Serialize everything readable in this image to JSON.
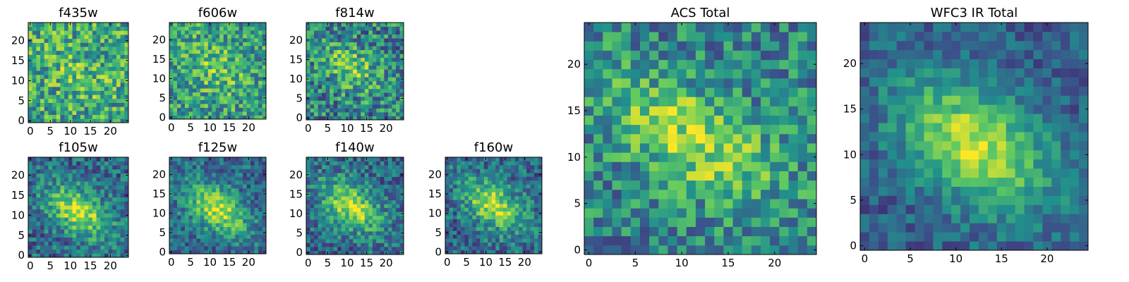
{
  "figure": {
    "colormap": "viridis",
    "colormap_stops": [
      "#440154",
      "#3b528b",
      "#21918c",
      "#5ec962",
      "#fde725"
    ],
    "axis_frame_color": "#000000"
  },
  "chart_data": [
    {
      "type": "heatmap",
      "title": "f435w",
      "grid_size": 25,
      "xlim": [
        -0.5,
        24.5
      ],
      "ylim": [
        -0.5,
        24.5
      ],
      "x_ticks": [
        0,
        5,
        10,
        15,
        20
      ],
      "y_ticks": [
        0,
        5,
        10,
        15,
        20
      ],
      "x_tick_labels": [
        "0",
        "5",
        "10",
        "15",
        "20"
      ],
      "y_tick_labels": [
        "0",
        "5",
        "10",
        "15",
        "20"
      ],
      "pattern": {
        "seed": 11,
        "blob_center": [
          12,
          12
        ],
        "blob_sigma": [
          6,
          4
        ],
        "blob_angle_deg": -35,
        "blob_amplitude": 0.1,
        "base_level": 0.6,
        "noise": 0.3
      }
    },
    {
      "type": "heatmap",
      "title": "f606w",
      "grid_size": 25,
      "xlim": [
        -0.5,
        24.5
      ],
      "ylim": [
        -0.5,
        24.5
      ],
      "x_ticks": [
        0,
        5,
        10,
        15,
        20
      ],
      "y_ticks": [
        0,
        5,
        10,
        15,
        20
      ],
      "x_tick_labels": [
        "0",
        "5",
        "10",
        "15",
        "20"
      ],
      "y_tick_labels": [
        "0",
        "5",
        "10",
        "15",
        "20"
      ],
      "pattern": {
        "seed": 23,
        "blob_center": [
          11,
          13
        ],
        "blob_sigma": [
          6,
          4
        ],
        "blob_angle_deg": -35,
        "blob_amplitude": 0.2,
        "base_level": 0.55,
        "noise": 0.28
      }
    },
    {
      "type": "heatmap",
      "title": "f814w",
      "grid_size": 25,
      "xlim": [
        -0.5,
        24.5
      ],
      "ylim": [
        -0.5,
        24.5
      ],
      "x_ticks": [
        0,
        5,
        10,
        15,
        20
      ],
      "y_ticks": [
        0,
        5,
        10,
        15,
        20
      ],
      "x_tick_labels": [
        "0",
        "5",
        "10",
        "15",
        "20"
      ],
      "y_tick_labels": [
        "0",
        "5",
        "10",
        "15",
        "20"
      ],
      "pattern": {
        "seed": 37,
        "blob_center": [
          11,
          13
        ],
        "blob_sigma": [
          6,
          3.5
        ],
        "blob_angle_deg": -35,
        "blob_amplitude": 0.3,
        "base_level": 0.45,
        "noise": 0.3
      }
    },
    {
      "type": "heatmap",
      "title": "f105w",
      "grid_size": 25,
      "xlim": [
        -0.5,
        24.5
      ],
      "ylim": [
        -0.5,
        24.5
      ],
      "x_ticks": [
        0,
        5,
        10,
        15,
        20
      ],
      "y_ticks": [
        0,
        5,
        10,
        15,
        20
      ],
      "x_tick_labels": [
        "0",
        "5",
        "10",
        "15",
        "20"
      ],
      "y_tick_labels": [
        "0",
        "5",
        "10",
        "15",
        "20"
      ],
      "pattern": {
        "seed": 41,
        "blob_center": [
          12,
          11
        ],
        "blob_sigma": [
          6,
          3.5
        ],
        "blob_angle_deg": -35,
        "blob_amplitude": 0.55,
        "base_level": 0.35,
        "noise": 0.22
      }
    },
    {
      "type": "heatmap",
      "title": "f125w",
      "grid_size": 25,
      "xlim": [
        -0.5,
        24.5
      ],
      "ylim": [
        -0.5,
        24.5
      ],
      "x_ticks": [
        0,
        5,
        10,
        15,
        20
      ],
      "y_ticks": [
        0,
        5,
        10,
        15,
        20
      ],
      "x_tick_labels": [
        "0",
        "5",
        "10",
        "15",
        "20"
      ],
      "y_tick_labels": [
        "0",
        "5",
        "10",
        "15",
        "20"
      ],
      "pattern": {
        "seed": 53,
        "blob_center": [
          12,
          11
        ],
        "blob_sigma": [
          6,
          3.5
        ],
        "blob_angle_deg": -35,
        "blob_amplitude": 0.55,
        "base_level": 0.35,
        "noise": 0.2
      }
    },
    {
      "type": "heatmap",
      "title": "f140w",
      "grid_size": 25,
      "xlim": [
        -0.5,
        24.5
      ],
      "ylim": [
        -0.5,
        24.5
      ],
      "x_ticks": [
        0,
        5,
        10,
        15,
        20
      ],
      "y_ticks": [
        0,
        5,
        10,
        15,
        20
      ],
      "x_tick_labels": [
        "0",
        "5",
        "10",
        "15",
        "20"
      ],
      "y_tick_labels": [
        "0",
        "5",
        "10",
        "15",
        "20"
      ],
      "pattern": {
        "seed": 67,
        "blob_center": [
          11,
          12
        ],
        "blob_sigma": [
          6,
          3.5
        ],
        "blob_angle_deg": -35,
        "blob_amplitude": 0.55,
        "base_level": 0.35,
        "noise": 0.22
      }
    },
    {
      "type": "heatmap",
      "title": "f160w",
      "grid_size": 25,
      "xlim": [
        -0.5,
        24.5
      ],
      "ylim": [
        -0.5,
        24.5
      ],
      "x_ticks": [
        0,
        5,
        10,
        15,
        20
      ],
      "y_ticks": [
        0,
        5,
        10,
        15,
        20
      ],
      "x_tick_labels": [
        "0",
        "5",
        "10",
        "15",
        "20"
      ],
      "y_tick_labels": [
        "0",
        "5",
        "10",
        "15",
        "20"
      ],
      "pattern": {
        "seed": 79,
        "blob_center": [
          12,
          12
        ],
        "blob_sigma": [
          6,
          3.5
        ],
        "blob_angle_deg": -35,
        "blob_amplitude": 0.55,
        "base_level": 0.35,
        "noise": 0.22
      }
    },
    {
      "type": "heatmap",
      "title": "ACS Total",
      "grid_size": 25,
      "xlim": [
        -0.5,
        24.5
      ],
      "ylim": [
        -0.5,
        24.5
      ],
      "x_ticks": [
        0,
        5,
        10,
        15,
        20
      ],
      "y_ticks": [
        0,
        5,
        10,
        15,
        20
      ],
      "x_tick_labels": [
        "0",
        "5",
        "10",
        "15",
        "20"
      ],
      "y_tick_labels": [
        "0",
        "5",
        "10",
        "15",
        "20"
      ],
      "pattern": {
        "seed": 97,
        "blob_center": [
          11,
          12
        ],
        "blob_sigma": [
          7,
          3.5
        ],
        "blob_angle_deg": -30,
        "blob_amplitude": 0.4,
        "base_level": 0.45,
        "noise": 0.25
      }
    },
    {
      "type": "heatmap",
      "title": "WFC3 IR Total",
      "grid_size": 25,
      "xlim": [
        -0.5,
        24.5
      ],
      "ylim": [
        -0.5,
        24.5
      ],
      "x_ticks": [
        0,
        5,
        10,
        15,
        20
      ],
      "y_ticks": [
        0,
        5,
        10,
        15,
        20
      ],
      "x_tick_labels": [
        "0",
        "5",
        "10",
        "15",
        "20"
      ],
      "y_tick_labels": [
        "0",
        "5",
        "10",
        "15",
        "20"
      ],
      "pattern": {
        "seed": 113,
        "blob_center": [
          12,
          11
        ],
        "blob_sigma": [
          6.5,
          4
        ],
        "blob_angle_deg": -35,
        "blob_amplitude": 0.6,
        "base_level": 0.3,
        "noise": 0.15
      }
    }
  ]
}
